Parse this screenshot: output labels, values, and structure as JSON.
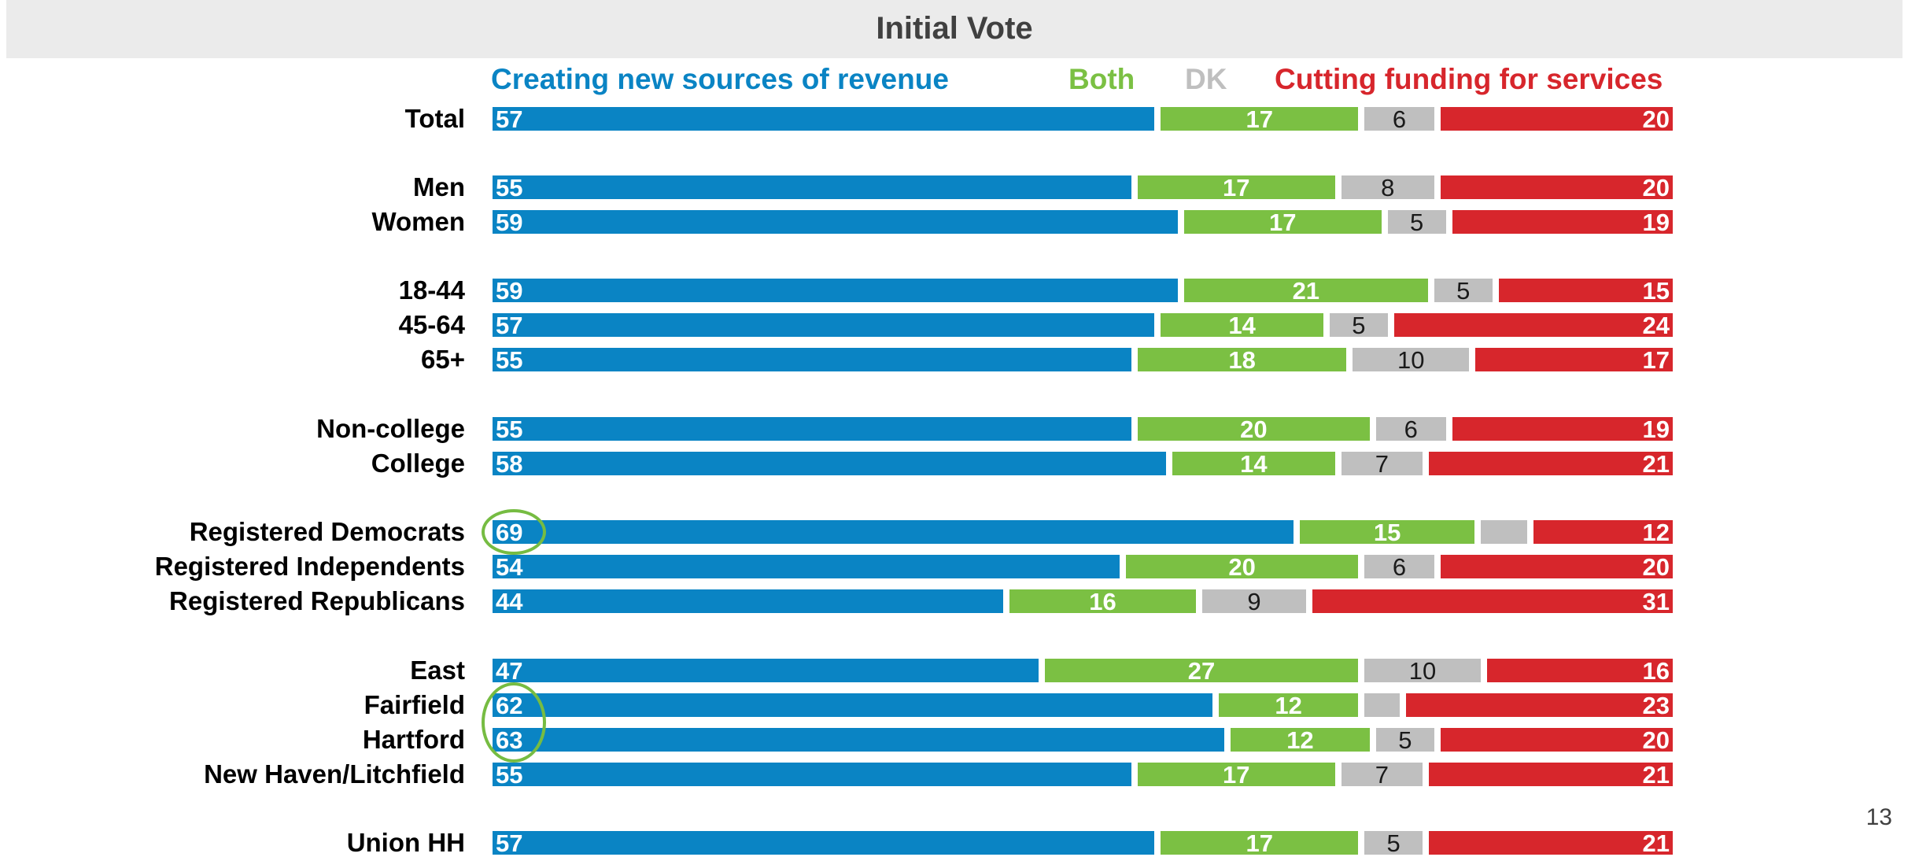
{
  "header": {
    "title": "Initial Vote"
  },
  "page_number": "13",
  "colors": {
    "revenue": "#0a84c4",
    "both": "#7bc043",
    "dk": "#bfbfbf",
    "cut": "#d7262c",
    "highlight": "#76bc42"
  },
  "legend": {
    "revenue": "Creating new sources of revenue",
    "both": "Both",
    "dk": "DK",
    "cut": "Cutting funding for services"
  },
  "chart_data": {
    "type": "bar",
    "stacked": true,
    "orientation": "horizontal",
    "categories": [
      "Total",
      "Men",
      "Women",
      "18-44",
      "45-64",
      "65+",
      "Non-college",
      "College",
      "Registered Democrats",
      "Registered Independents",
      "Registered Republicans",
      "East",
      "Fairfield",
      "Hartford",
      "New Haven/Litchfield",
      "Union HH"
    ],
    "series": [
      {
        "name": "Creating new sources of revenue",
        "values": [
          57,
          55,
          59,
          59,
          57,
          55,
          55,
          58,
          69,
          54,
          44,
          47,
          62,
          63,
          55,
          57
        ]
      },
      {
        "name": "Both",
        "values": [
          17,
          17,
          17,
          21,
          14,
          18,
          20,
          14,
          15,
          20,
          16,
          27,
          12,
          12,
          17,
          17
        ]
      },
      {
        "name": "DK",
        "values": [
          6,
          8,
          5,
          5,
          5,
          10,
          6,
          7,
          4,
          6,
          9,
          10,
          3,
          5,
          7,
          5
        ]
      },
      {
        "name": "Cutting funding for services",
        "values": [
          20,
          20,
          19,
          15,
          24,
          17,
          19,
          21,
          12,
          20,
          31,
          16,
          23,
          20,
          21,
          21
        ]
      }
    ],
    "value_labels": {
      "dk": [
        "6",
        "8",
        "5",
        "5",
        "5",
        "10",
        "6",
        "7",
        "",
        "6",
        "9",
        "10",
        "",
        "5",
        "7",
        "5"
      ]
    },
    "highlighted": [
      "Registered Democrats",
      "Fairfield",
      "Hartford"
    ],
    "xlim": [
      0,
      100
    ]
  }
}
